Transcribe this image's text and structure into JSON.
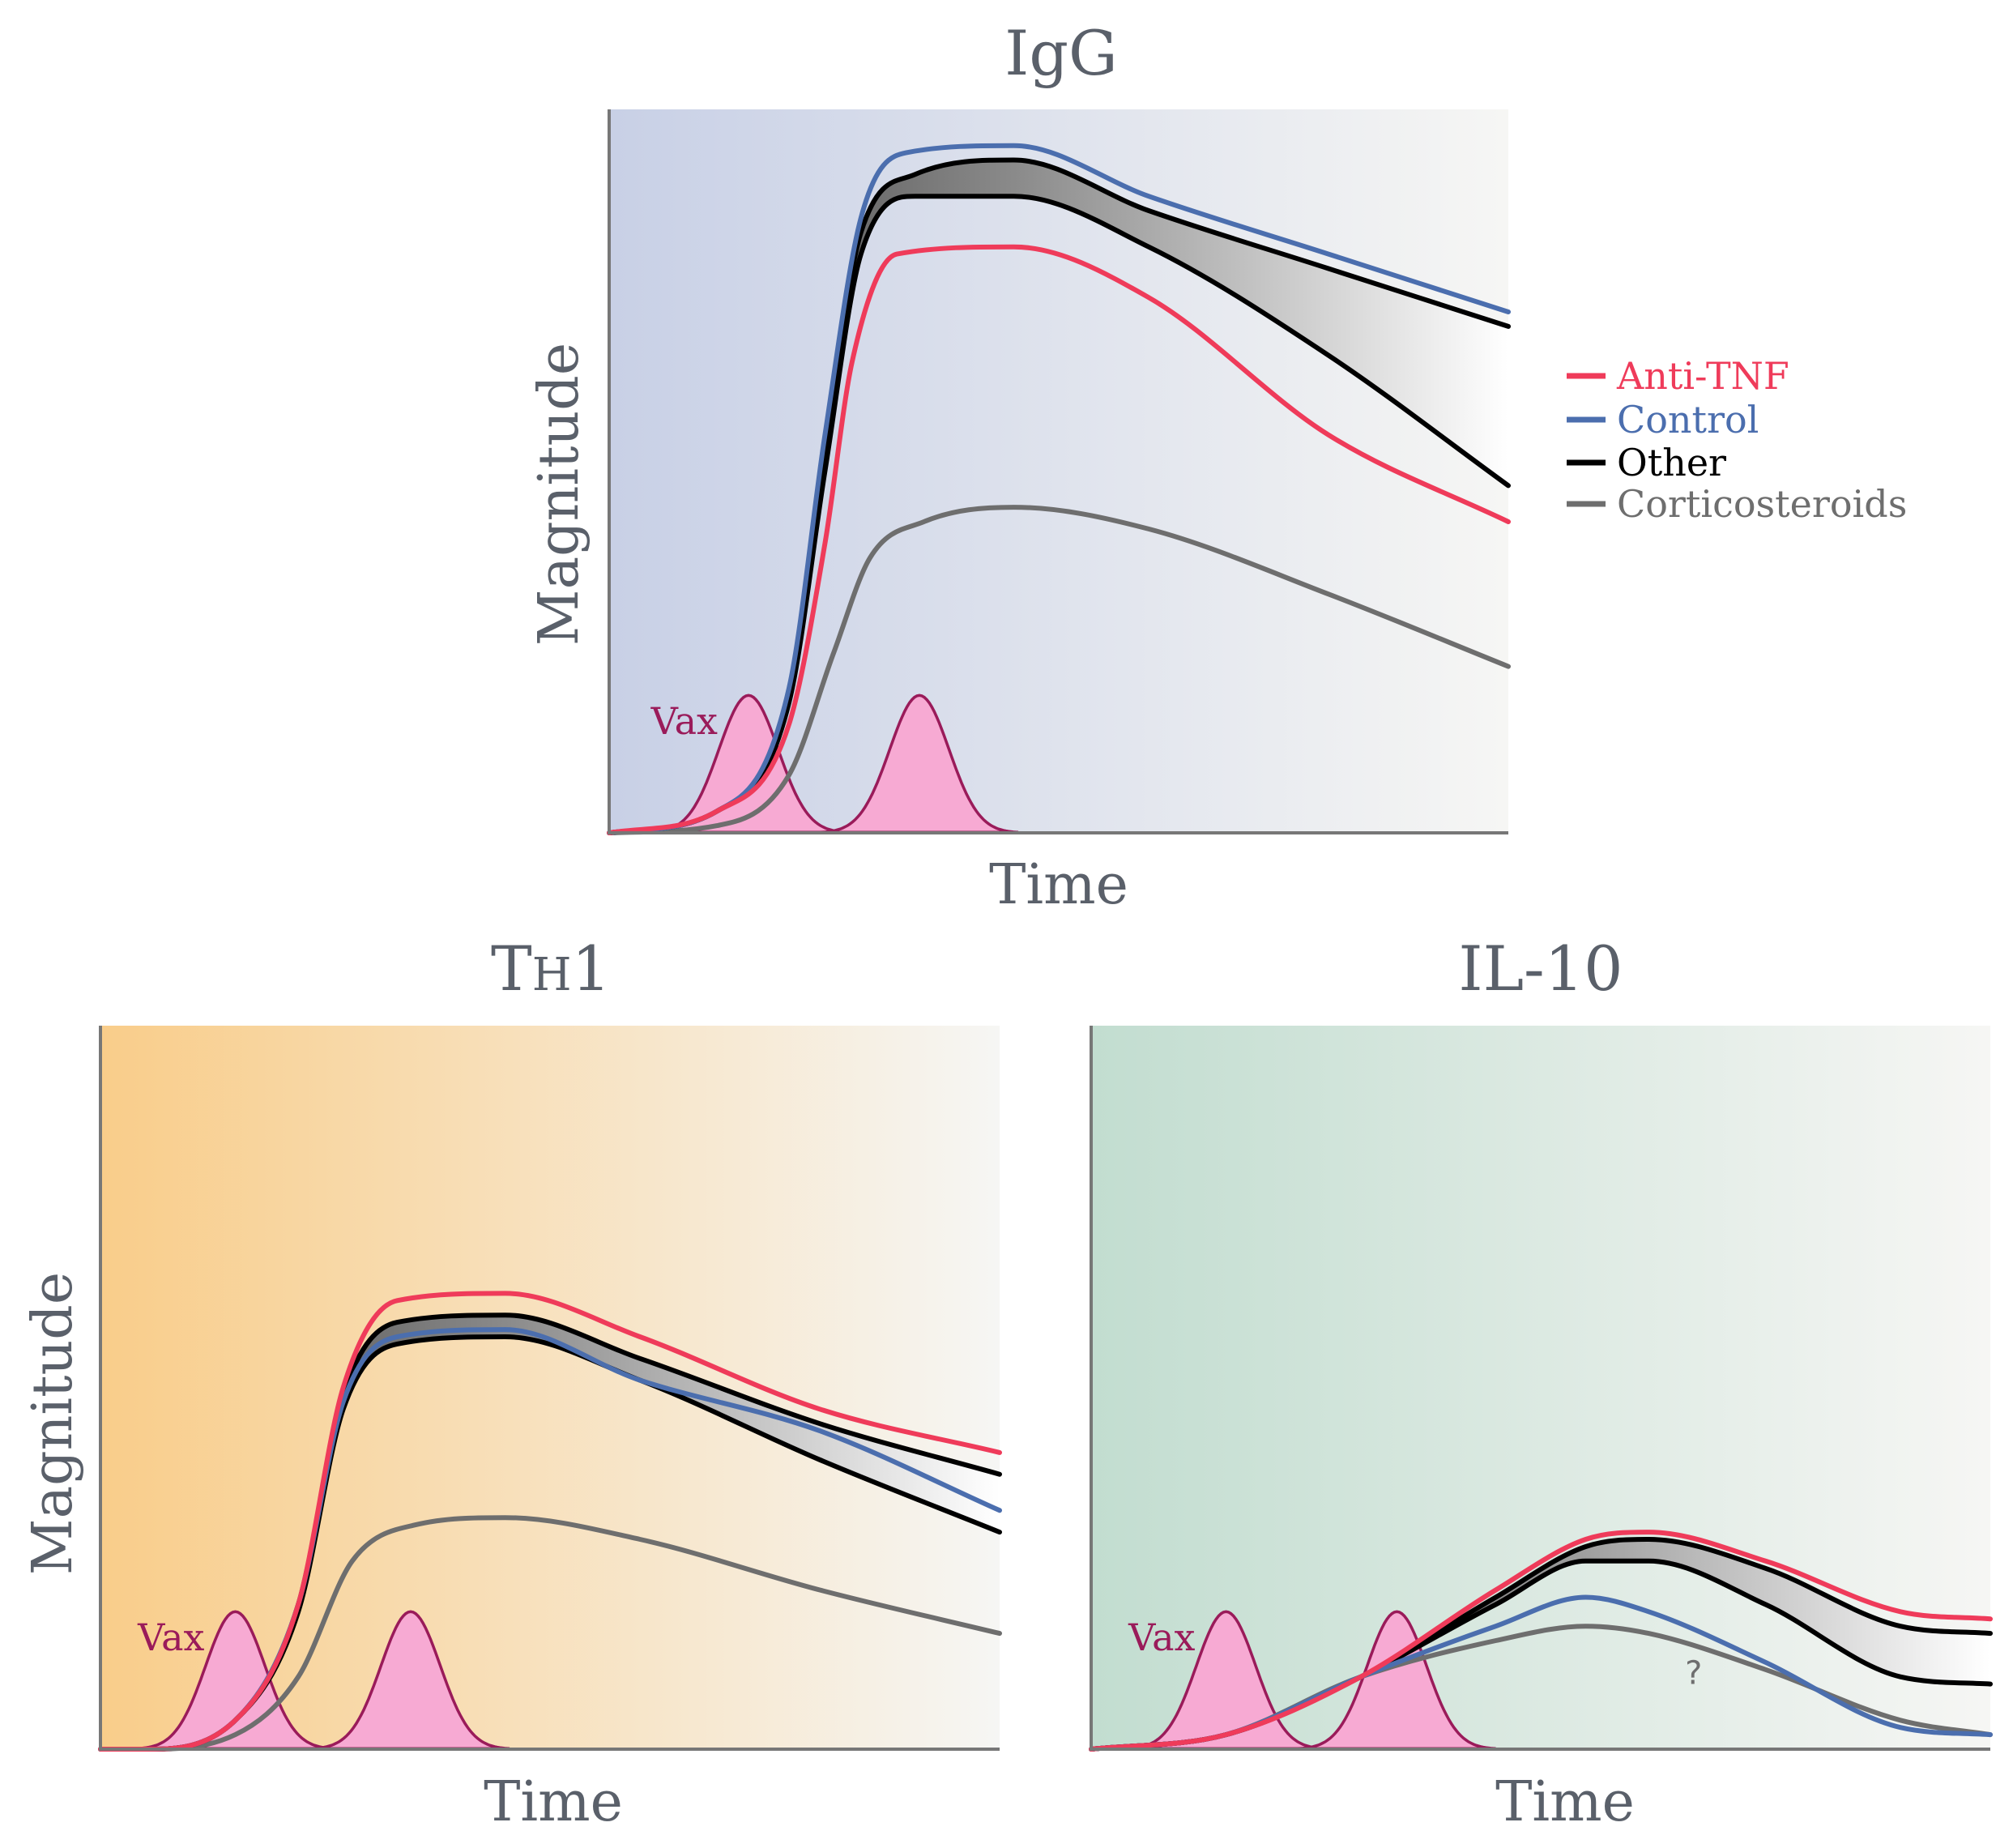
{
  "colors": {
    "anti_tnf": "#ef3b5a",
    "control": "#4b6eae",
    "other": "#000000",
    "corticosteroids": "#6e6e6e",
    "vax_fill": "#f7aad3",
    "vax_stroke": "#9a1b5a",
    "igg_bg": "#c8d0e6",
    "th1_bg": "#f9cd8a",
    "il10_bg": "#c2ddd0",
    "bg_fade": "#f6f6f4"
  },
  "legend": {
    "items": [
      {
        "label": "Anti-TNF",
        "series": "anti_tnf"
      },
      {
        "label": "Control",
        "series": "control"
      },
      {
        "label": "Other",
        "series": "other"
      },
      {
        "label": "Corticosteroids",
        "series": "corticosteroids"
      }
    ]
  },
  "chart_data": [
    {
      "id": "igg",
      "type": "line",
      "title": "IgG",
      "xlabel": "Time",
      "ylabel": "Magnitude",
      "xlim": [
        0,
        100
      ],
      "ylim": [
        0,
        100
      ],
      "grid": false,
      "legend_position": "right",
      "bg_color": "igg",
      "vax": {
        "label": "Vax",
        "peaks": [
          15.5,
          34.5
        ],
        "height": 19
      },
      "series": [
        {
          "name": "Anti-TNF",
          "key": "anti_tnf",
          "points": [
            [
              0,
              0
            ],
            [
              12,
              3
            ],
            [
              20,
              15
            ],
            [
              24,
              40
            ],
            [
              27,
              65
            ],
            [
              32,
              80
            ],
            [
              45,
              81
            ],
            [
              60,
              74
            ],
            [
              80,
              55
            ],
            [
              100,
              43
            ]
          ]
        },
        {
          "name": "Control",
          "key": "control",
          "points": [
            [
              0,
              0
            ],
            [
              12,
              3
            ],
            [
              20,
              20
            ],
            [
              24,
              55
            ],
            [
              28,
              85
            ],
            [
              33,
              94
            ],
            [
              45,
              95
            ],
            [
              60,
              88
            ],
            [
              80,
              80
            ],
            [
              100,
              72
            ]
          ]
        },
        {
          "name": "Other (upper)",
          "key": "other",
          "points": [
            [
              0,
              0
            ],
            [
              12,
              3
            ],
            [
              20,
              19
            ],
            [
              24,
              53
            ],
            [
              28,
              83
            ],
            [
              34,
              91
            ],
            [
              45,
              93
            ],
            [
              60,
              86
            ],
            [
              80,
              78
            ],
            [
              100,
              70
            ]
          ]
        },
        {
          "name": "Other (lower)",
          "key": "other",
          "points": [
            [
              0,
              0
            ],
            [
              12,
              3
            ],
            [
              20,
              18
            ],
            [
              24,
              50
            ],
            [
              28,
              80
            ],
            [
              34,
              88
            ],
            [
              45,
              88
            ],
            [
              60,
              81
            ],
            [
              80,
              66
            ],
            [
              100,
              48
            ]
          ]
        },
        {
          "name": "Corticosteroids",
          "key": "corticosteroids",
          "points": [
            [
              0,
              0
            ],
            [
              12,
              1
            ],
            [
              20,
              8
            ],
            [
              25,
              25
            ],
            [
              29,
              38
            ],
            [
              35,
              43
            ],
            [
              45,
              45
            ],
            [
              60,
              42
            ],
            [
              80,
              33
            ],
            [
              100,
              23
            ]
          ]
        }
      ],
      "band": "Other"
    },
    {
      "id": "th1",
      "type": "line",
      "title": "TH1",
      "title_main": "T",
      "title_sub": "H",
      "title_tail": "1",
      "xlabel": "Time",
      "ylabel": "Magnitude",
      "xlim": [
        0,
        100
      ],
      "ylim": [
        0,
        100
      ],
      "grid": false,
      "bg_color": "th1",
      "vax": {
        "label": "Vax",
        "peaks": [
          15,
          34.5
        ],
        "height": 19
      },
      "series": [
        {
          "name": "Anti-TNF",
          "key": "anti_tnf",
          "points": [
            [
              0,
              0
            ],
            [
              5,
              0
            ],
            [
              15,
              4
            ],
            [
              22,
              20
            ],
            [
              27,
              50
            ],
            [
              33,
              62
            ],
            [
              45,
              63
            ],
            [
              60,
              57
            ],
            [
              80,
              47
            ],
            [
              100,
              41
            ]
          ]
        },
        {
          "name": "Control",
          "key": "control",
          "points": [
            [
              0,
              0
            ],
            [
              5,
              0
            ],
            [
              15,
              4
            ],
            [
              22,
              20
            ],
            [
              27,
              48
            ],
            [
              33,
              57
            ],
            [
              45,
              58
            ],
            [
              60,
              51
            ],
            [
              80,
              44
            ],
            [
              100,
              33
            ]
          ]
        },
        {
          "name": "Other (upper)",
          "key": "other",
          "points": [
            [
              0,
              0
            ],
            [
              5,
              0
            ],
            [
              15,
              4
            ],
            [
              22,
              20
            ],
            [
              27,
              49
            ],
            [
              33,
              59
            ],
            [
              45,
              60
            ],
            [
              60,
              54
            ],
            [
              80,
              45
            ],
            [
              100,
              38
            ]
          ]
        },
        {
          "name": "Other (lower)",
          "key": "other",
          "points": [
            [
              0,
              0
            ],
            [
              5,
              0
            ],
            [
              15,
              4
            ],
            [
              22,
              19
            ],
            [
              27,
              47
            ],
            [
              33,
              56
            ],
            [
              45,
              57
            ],
            [
              60,
              51
            ],
            [
              80,
              40
            ],
            [
              100,
              30
            ]
          ]
        },
        {
          "name": "Corticosteroids",
          "key": "corticosteroids",
          "points": [
            [
              0,
              0
            ],
            [
              5,
              0
            ],
            [
              15,
              2
            ],
            [
              22,
              10
            ],
            [
              28,
              26
            ],
            [
              35,
              31
            ],
            [
              45,
              32
            ],
            [
              60,
              29
            ],
            [
              80,
              22
            ],
            [
              100,
              16
            ]
          ]
        }
      ],
      "band": "Other"
    },
    {
      "id": "il10",
      "type": "line",
      "title": "IL-10",
      "xlabel": "Time",
      "ylabel": "",
      "xlim": [
        0,
        100
      ],
      "ylim": [
        0,
        100
      ],
      "grid": false,
      "bg_color": "il10",
      "vax": {
        "label": "Vax",
        "peaks": [
          15,
          34
        ],
        "height": 19
      },
      "annotation": {
        "text": "?",
        "x": 67,
        "y": 9
      },
      "series": [
        {
          "name": "Anti-TNF",
          "key": "anti_tnf",
          "points": [
            [
              0,
              0
            ],
            [
              15,
              2
            ],
            [
              30,
              10
            ],
            [
              45,
              22
            ],
            [
              55,
              29
            ],
            [
              62,
              30
            ],
            [
              75,
              26
            ],
            [
              90,
              19
            ],
            [
              100,
              18
            ]
          ]
        },
        {
          "name": "Control",
          "key": "control",
          "points": [
            [
              0,
              0
            ],
            [
              15,
              2
            ],
            [
              30,
              10
            ],
            [
              45,
              17
            ],
            [
              55,
              21
            ],
            [
              62,
              19
            ],
            [
              75,
              12
            ],
            [
              90,
              3
            ],
            [
              100,
              2
            ]
          ]
        },
        {
          "name": "Other (upper)",
          "key": "other",
          "points": [
            [
              0,
              0
            ],
            [
              15,
              2
            ],
            [
              30,
              10
            ],
            [
              45,
              21
            ],
            [
              55,
              28
            ],
            [
              62,
              29
            ],
            [
              75,
              25
            ],
            [
              90,
              17
            ],
            [
              100,
              16
            ]
          ]
        },
        {
          "name": "Other (lower)",
          "key": "other",
          "points": [
            [
              0,
              0
            ],
            [
              15,
              2
            ],
            [
              30,
              10
            ],
            [
              45,
              20
            ],
            [
              55,
              26
            ],
            [
              62,
              26
            ],
            [
              75,
              20
            ],
            [
              90,
              10
            ],
            [
              100,
              9
            ]
          ]
        },
        {
          "name": "Corticosteroids",
          "key": "corticosteroids",
          "points": [
            [
              0,
              0
            ],
            [
              15,
              2
            ],
            [
              30,
              10
            ],
            [
              45,
              15
            ],
            [
              55,
              17
            ],
            [
              62,
              16
            ],
            [
              75,
              11
            ],
            [
              90,
              4
            ],
            [
              100,
              2
            ]
          ]
        }
      ],
      "band": "Other"
    }
  ]
}
